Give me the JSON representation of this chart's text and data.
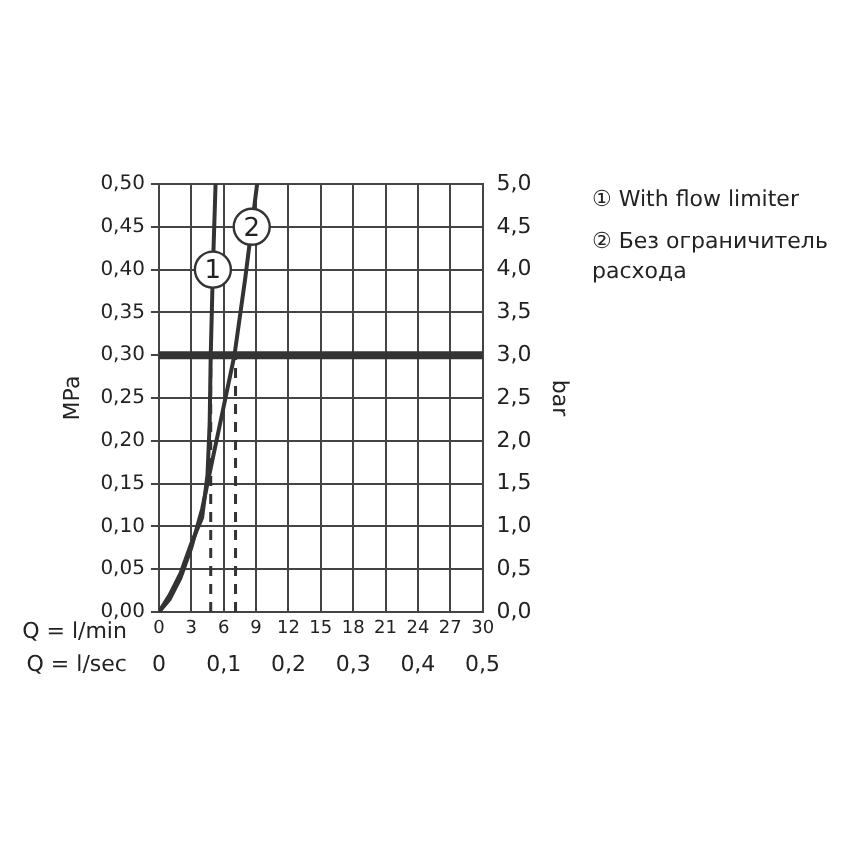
{
  "chart_data": {
    "type": "line",
    "xlabel": "Q = l/min",
    "x2label": "Q = l/sec",
    "ylabel": "MPa",
    "y2label": "bar",
    "xlim": [
      0,
      30
    ],
    "xticks": [
      0,
      3,
      6,
      9,
      12,
      15,
      18,
      21,
      24,
      27,
      30
    ],
    "x2lim": [
      0,
      0.5
    ],
    "x2ticks": [
      {
        "value": 0,
        "label": "0"
      },
      {
        "value": 0.1,
        "label": "0,1"
      },
      {
        "value": 0.2,
        "label": "0,2"
      },
      {
        "value": 0.3,
        "label": "0,3"
      },
      {
        "value": 0.4,
        "label": "0,4"
      },
      {
        "value": 0.5,
        "label": "0,5"
      }
    ],
    "ylim": [
      0,
      0.5
    ],
    "yticks": [
      {
        "value": 0,
        "label": "0,00"
      },
      {
        "value": 0.05,
        "label": "0,05"
      },
      {
        "value": 0.1,
        "label": "0,10"
      },
      {
        "value": 0.15,
        "label": "0,15"
      },
      {
        "value": 0.2,
        "label": "0,20"
      },
      {
        "value": 0.25,
        "label": "0,25"
      },
      {
        "value": 0.3,
        "label": "0,30"
      },
      {
        "value": 0.35,
        "label": "0,35"
      },
      {
        "value": 0.4,
        "label": "0,40"
      },
      {
        "value": 0.45,
        "label": "0,45"
      },
      {
        "value": 0.5,
        "label": "0,50"
      }
    ],
    "y2lim": [
      0,
      5
    ],
    "y2ticks": [
      {
        "value": 0,
        "label": "0,0"
      },
      {
        "value": 0.5,
        "label": "0,5"
      },
      {
        "value": 1,
        "label": "1,0"
      },
      {
        "value": 1.5,
        "label": "1,5"
      },
      {
        "value": 2,
        "label": "2,0"
      },
      {
        "value": 2.5,
        "label": "2,5"
      },
      {
        "value": 3,
        "label": "3,0"
      },
      {
        "value": 3.5,
        "label": "3,5"
      },
      {
        "value": 4,
        "label": "4,0"
      },
      {
        "value": 4.5,
        "label": "4,5"
      },
      {
        "value": 5,
        "label": "5,0"
      }
    ],
    "grid": true,
    "legend": "right",
    "marker": "none",
    "line_style": "solid",
    "series": [
      {
        "name": "① With flow limiter",
        "color": "#333333",
        "x": [
          0,
          1,
          2,
          3,
          4,
          4.5,
          4.7,
          4.8,
          5,
          5.25
        ],
        "values": [
          0,
          0.02,
          0.045,
          0.08,
          0.11,
          0.16,
          0.22,
          0.3,
          0.4,
          0.5
        ]
      },
      {
        "name": "② Без ограничитель расхода",
        "color": "#333333",
        "x": [
          0,
          1,
          2,
          3,
          4,
          4.5,
          5,
          6,
          7,
          8,
          9.1
        ],
        "values": [
          0,
          0.015,
          0.04,
          0.075,
          0.12,
          0.15,
          0.18,
          0.24,
          0.3,
          0.39,
          0.5
        ]
      }
    ],
    "ref_lines": [
      {
        "axis": "y",
        "value": 0.3,
        "color": "#333333",
        "line_style": "solid"
      },
      {
        "axis": "x",
        "value": 4.8,
        "color": "#333333",
        "line_style": "dashed"
      },
      {
        "axis": "x",
        "value": 7.1,
        "color": "#333333",
        "line_style": "dashed"
      }
    ],
    "annotations": [
      {
        "text": "1",
        "x": 5,
        "y": 0.4
      },
      {
        "text": "2",
        "x": 8.6,
        "y": 0.45
      }
    ]
  }
}
